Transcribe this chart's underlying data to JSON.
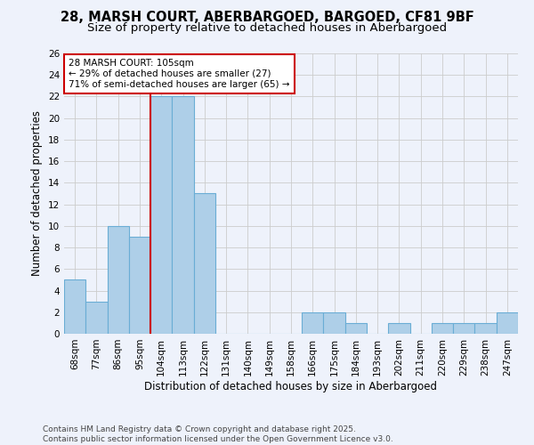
{
  "title": "28, MARSH COURT, ABERBARGOED, BARGOED, CF81 9BF",
  "subtitle": "Size of property relative to detached houses in Aberbargoed",
  "xlabel": "Distribution of detached houses by size in Aberbargoed",
  "ylabel": "Number of detached properties",
  "categories": [
    "68sqm",
    "77sqm",
    "86sqm",
    "95sqm",
    "104sqm",
    "113sqm",
    "122sqm",
    "131sqm",
    "140sqm",
    "149sqm",
    "158sqm",
    "166sqm",
    "175sqm",
    "184sqm",
    "193sqm",
    "202sqm",
    "211sqm",
    "220sqm",
    "229sqm",
    "238sqm",
    "247sqm"
  ],
  "values": [
    5,
    3,
    10,
    9,
    22,
    22,
    13,
    0,
    0,
    0,
    0,
    2,
    2,
    1,
    0,
    1,
    0,
    1,
    1,
    1,
    2
  ],
  "bar_color": "#aecfe8",
  "bar_edge_color": "#6aadd5",
  "vline_color": "#cc0000",
  "property_line_label": "28 MARSH COURT: 105sqm",
  "annotation_line1": "← 29% of detached houses are smaller (27)",
  "annotation_line2": "71% of semi-detached houses are larger (65) →",
  "annotation_box_color": "#ffffff",
  "annotation_box_edge": "#cc0000",
  "footer1": "Contains HM Land Registry data © Crown copyright and database right 2025.",
  "footer2": "Contains public sector information licensed under the Open Government Licence v3.0.",
  "ylim": [
    0,
    26
  ],
  "yticks": [
    0,
    2,
    4,
    6,
    8,
    10,
    12,
    14,
    16,
    18,
    20,
    22,
    24,
    26
  ],
  "background_color": "#eef2fb",
  "grid_color": "#cccccc",
  "title_fontsize": 10.5,
  "subtitle_fontsize": 9.5,
  "axis_label_fontsize": 8.5,
  "tick_fontsize": 7.5,
  "annot_fontsize": 7.5,
  "footer_fontsize": 6.5
}
